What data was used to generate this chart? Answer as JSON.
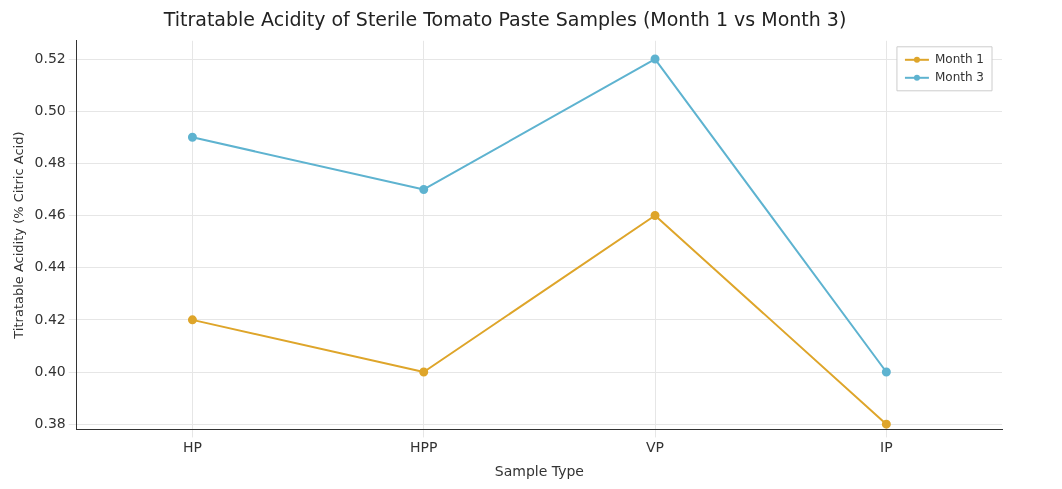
{
  "chart_data": {
    "type": "line",
    "title": "Titratable Acidity of Sterile Tomato Paste Samples (Month 1 vs Month 3)",
    "xlabel": "Sample Type",
    "ylabel": "Titratable Acidity (% Citric Acid)",
    "categories": [
      "HP",
      "HPP",
      "VP",
      "IP"
    ],
    "series": [
      {
        "name": "Month 1",
        "color": "#dea52a",
        "values": [
          0.42,
          0.4,
          0.46,
          0.38
        ]
      },
      {
        "name": "Month 3",
        "color": "#5eb3d0",
        "values": [
          0.49,
          0.47,
          0.52,
          0.4
        ]
      }
    ],
    "ylim": [
      0.378,
      0.527
    ],
    "yticks": [
      {
        "value": 0.38,
        "label": "0.38"
      },
      {
        "value": 0.4,
        "label": "0.40"
      },
      {
        "value": 0.42,
        "label": "0.42"
      },
      {
        "value": 0.44,
        "label": "0.44"
      },
      {
        "value": 0.46,
        "label": "0.46"
      },
      {
        "value": 0.48,
        "label": "0.48"
      },
      {
        "value": 0.5,
        "label": "0.50"
      },
      {
        "value": 0.52,
        "label": "0.52"
      }
    ],
    "grid": true,
    "legend": "top right",
    "marker": "circle",
    "line_style": "solid"
  }
}
